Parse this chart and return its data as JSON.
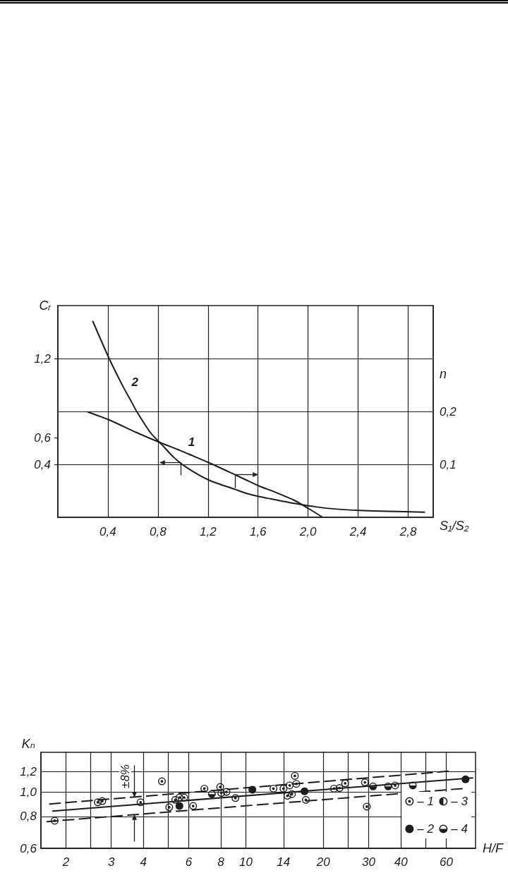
{
  "chart_data": [
    {
      "type": "line",
      "xlabel": "S₁/S₂",
      "ylabel": "Cᵣ",
      "y2label": "n",
      "xlim": [
        0,
        3.0
      ],
      "xticks": [
        {
          "value": 0.4,
          "label": "0,4"
        },
        {
          "value": 0.8,
          "label": "0,8"
        },
        {
          "value": 1.2,
          "label": "1,2"
        },
        {
          "value": 1.6,
          "label": "1,6"
        },
        {
          "value": 2.0,
          "label": "2,0"
        },
        {
          "value": 2.4,
          "label": "2,4"
        },
        {
          "value": 2.8,
          "label": "2,8"
        }
      ],
      "ylim": [
        0,
        1.6
      ],
      "yticks": [
        {
          "value": 0.4,
          "label": "0,4"
        },
        {
          "value": 0.6,
          "label": "0,6"
        },
        {
          "value": 1.2,
          "label": "1,2"
        }
      ],
      "y2lim": [
        0,
        0.4
      ],
      "y2ticks": [
        {
          "value": 0.1,
          "label": "0,1"
        },
        {
          "value": 0.2,
          "label": "0,2"
        },
        {
          "value": 0.3,
          "label": null
        }
      ],
      "grid": true,
      "marker": "none",
      "line_style": "solid",
      "series": [
        {
          "name": "1",
          "axis": "y2",
          "color": "#1c1c1c",
          "x": [
            0.24,
            0.41,
            0.63,
            0.83,
            0.96,
            1.04,
            1.21,
            1.42,
            1.51,
            1.62,
            1.7,
            1.89,
            2.0,
            2.11
          ],
          "values": [
            0.199,
            0.184,
            0.16,
            0.14,
            0.128,
            0.12,
            0.103,
            0.08,
            0.07,
            0.058,
            0.051,
            0.032,
            0.017,
            0.001
          ]
        },
        {
          "name": "2",
          "color": "#1c1c1c",
          "x": [
            0.28,
            0.41,
            0.52,
            0.59,
            0.63,
            0.74,
            0.83,
            0.93,
            1.04,
            1.21,
            1.42,
            1.51,
            1.62,
            1.7,
            1.89,
            2.07,
            2.23,
            2.41,
            2.64,
            2.93
          ],
          "values": [
            1.48,
            1.2,
            0.99,
            0.87,
            0.8,
            0.64,
            0.55,
            0.45,
            0.37,
            0.28,
            0.21,
            0.18,
            0.155,
            0.14,
            0.105,
            0.078,
            0.062,
            0.052,
            0.045,
            0.039
          ]
        }
      ]
    },
    {
      "type": "scatter",
      "xlabel": "H/F",
      "ylabel": "Kₙ",
      "log": "xy",
      "xlim": [
        1.6,
        78
      ],
      "xticks": [
        2,
        {
          "value": 2.5,
          "label": null
        },
        3,
        4,
        {
          "value": 5,
          "label": null
        },
        6,
        8,
        10,
        14,
        20,
        {
          "value": 25,
          "label": null
        },
        30,
        40,
        {
          "value": 50,
          "label": null
        },
        60
      ],
      "ylim": [
        0.6,
        1.43
      ],
      "yticks": [
        {
          "value": 0.6,
          "label": "0,6"
        },
        {
          "value": 0.8,
          "label": "0,8"
        },
        {
          "value": 1.0,
          "label": "1,0"
        },
        {
          "value": 1.2,
          "label": "1,2"
        }
      ],
      "grid": true,
      "legend": "bottom right",
      "marker": "circle",
      "annotations": [
        "±8%"
      ],
      "series": [
        {
          "name": "– 1",
          "color": "#1c1c1c",
          "x": [
            1.81,
            2.66,
            2.77,
            3.9,
            4.72,
            5.04,
            5.32,
            5.52,
            5.76,
            6.24,
            6.9,
            7.95,
            8.03,
            8.41,
            9.11,
            12.8,
            14.0,
            14.5,
            14.8,
            15.5,
            15.7,
            15.1,
            17.1,
            22.0,
            23.1,
            24.3,
            29.0,
            29.5,
            38.0
          ],
          "values": [
            0.77,
            0.91,
            0.92,
            0.91,
            1.1,
            0.87,
            0.93,
            0.95,
            0.95,
            0.88,
            1.03,
            1.045,
            0.99,
            1.0,
            0.945,
            1.03,
            1.03,
            0.965,
            1.06,
            1.155,
            1.075,
            0.98,
            0.93,
            1.03,
            1.035,
            1.08,
            1.09,
            0.875,
            1.06
          ]
        },
        {
          "name": "– 2",
          "color": "#1c1c1c",
          "x": [
            5.52,
            10.6,
            16.9,
            71.3
          ],
          "values": [
            0.88,
            1.02,
            1.005,
            1.12
          ]
        },
        {
          "name": "– 3",
          "color": "#1c1c1c"
        },
        {
          "name": "– 4",
          "color": "#1c1c1c",
          "x": [
            7.38,
            31.2,
            35.7,
            44.5
          ],
          "values": [
            0.98,
            1.05,
            1.05,
            1.06
          ]
        },
        {
          "type": "line",
          "marker": "none",
          "line_style": "solid",
          "color": "#1c1c1c",
          "x": [
            1.78,
            76
          ],
          "values": [
            0.84,
            1.135
          ]
        },
        {
          "type": "line",
          "marker": "none",
          "line_style": "dashed",
          "color": "#1c1c1c",
          "x": [
            1.73,
            61
          ],
          "values": [
            0.896,
            1.205
          ]
        },
        {
          "type": "line",
          "marker": "none",
          "line_style": "dashed",
          "color": "#1c1c1c",
          "x": [
            1.69,
            69.5
          ],
          "values": [
            0.764,
            1.03
          ]
        }
      ]
    }
  ]
}
